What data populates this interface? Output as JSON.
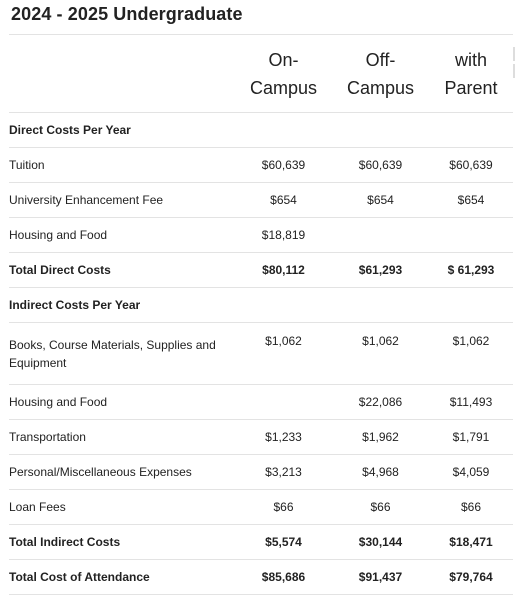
{
  "title": "2024 - 2025 Undergraduate",
  "columns": [
    {
      "line1": "On-",
      "line2": "Campus"
    },
    {
      "line1": "Off-",
      "line2": "Campus"
    },
    {
      "line1": "with",
      "line2": "Parent"
    }
  ],
  "rows": [
    {
      "label": "Direct Costs Per Year",
      "values": [
        "",
        "",
        ""
      ]
    },
    {
      "label": "Tuition",
      "values": [
        "$60,639",
        "$60,639",
        "$60,639"
      ]
    },
    {
      "label": "University Enhancement Fee",
      "values": [
        "$654",
        "$654",
        "$654"
      ]
    },
    {
      "label": "Housing and Food",
      "values": [
        "$18,819",
        "",
        ""
      ]
    },
    {
      "label": "Total Direct Costs",
      "values": [
        "$80,112",
        "$61,293",
        "$ 61,293"
      ]
    },
    {
      "label": "Indirect Costs Per Year",
      "values": [
        "",
        "",
        ""
      ]
    },
    {
      "label": "Books, Course Materials, Supplies and Equipment",
      "values": [
        "$1,062",
        "$1,062",
        "$1,062"
      ]
    },
    {
      "label": "Housing and Food",
      "values": [
        "",
        "$22,086",
        "$11,493"
      ]
    },
    {
      "label": "Transportation",
      "values": [
        "$1,233",
        "$1,962",
        "$1,791"
      ]
    },
    {
      "label": "Personal/Miscellaneous Expenses",
      "values": [
        "$3,213",
        "$4,968",
        "$4,059"
      ]
    },
    {
      "label": "Loan Fees",
      "values": [
        "$66",
        "$66",
        "$66"
      ]
    },
    {
      "label": "Total Indirect Costs",
      "values": [
        "$5,574",
        "$30,144",
        "$18,471"
      ]
    },
    {
      "label": "Total Cost of Attendance",
      "values": [
        "$85,686",
        "$91,437",
        "$79,764"
      ]
    }
  ]
}
